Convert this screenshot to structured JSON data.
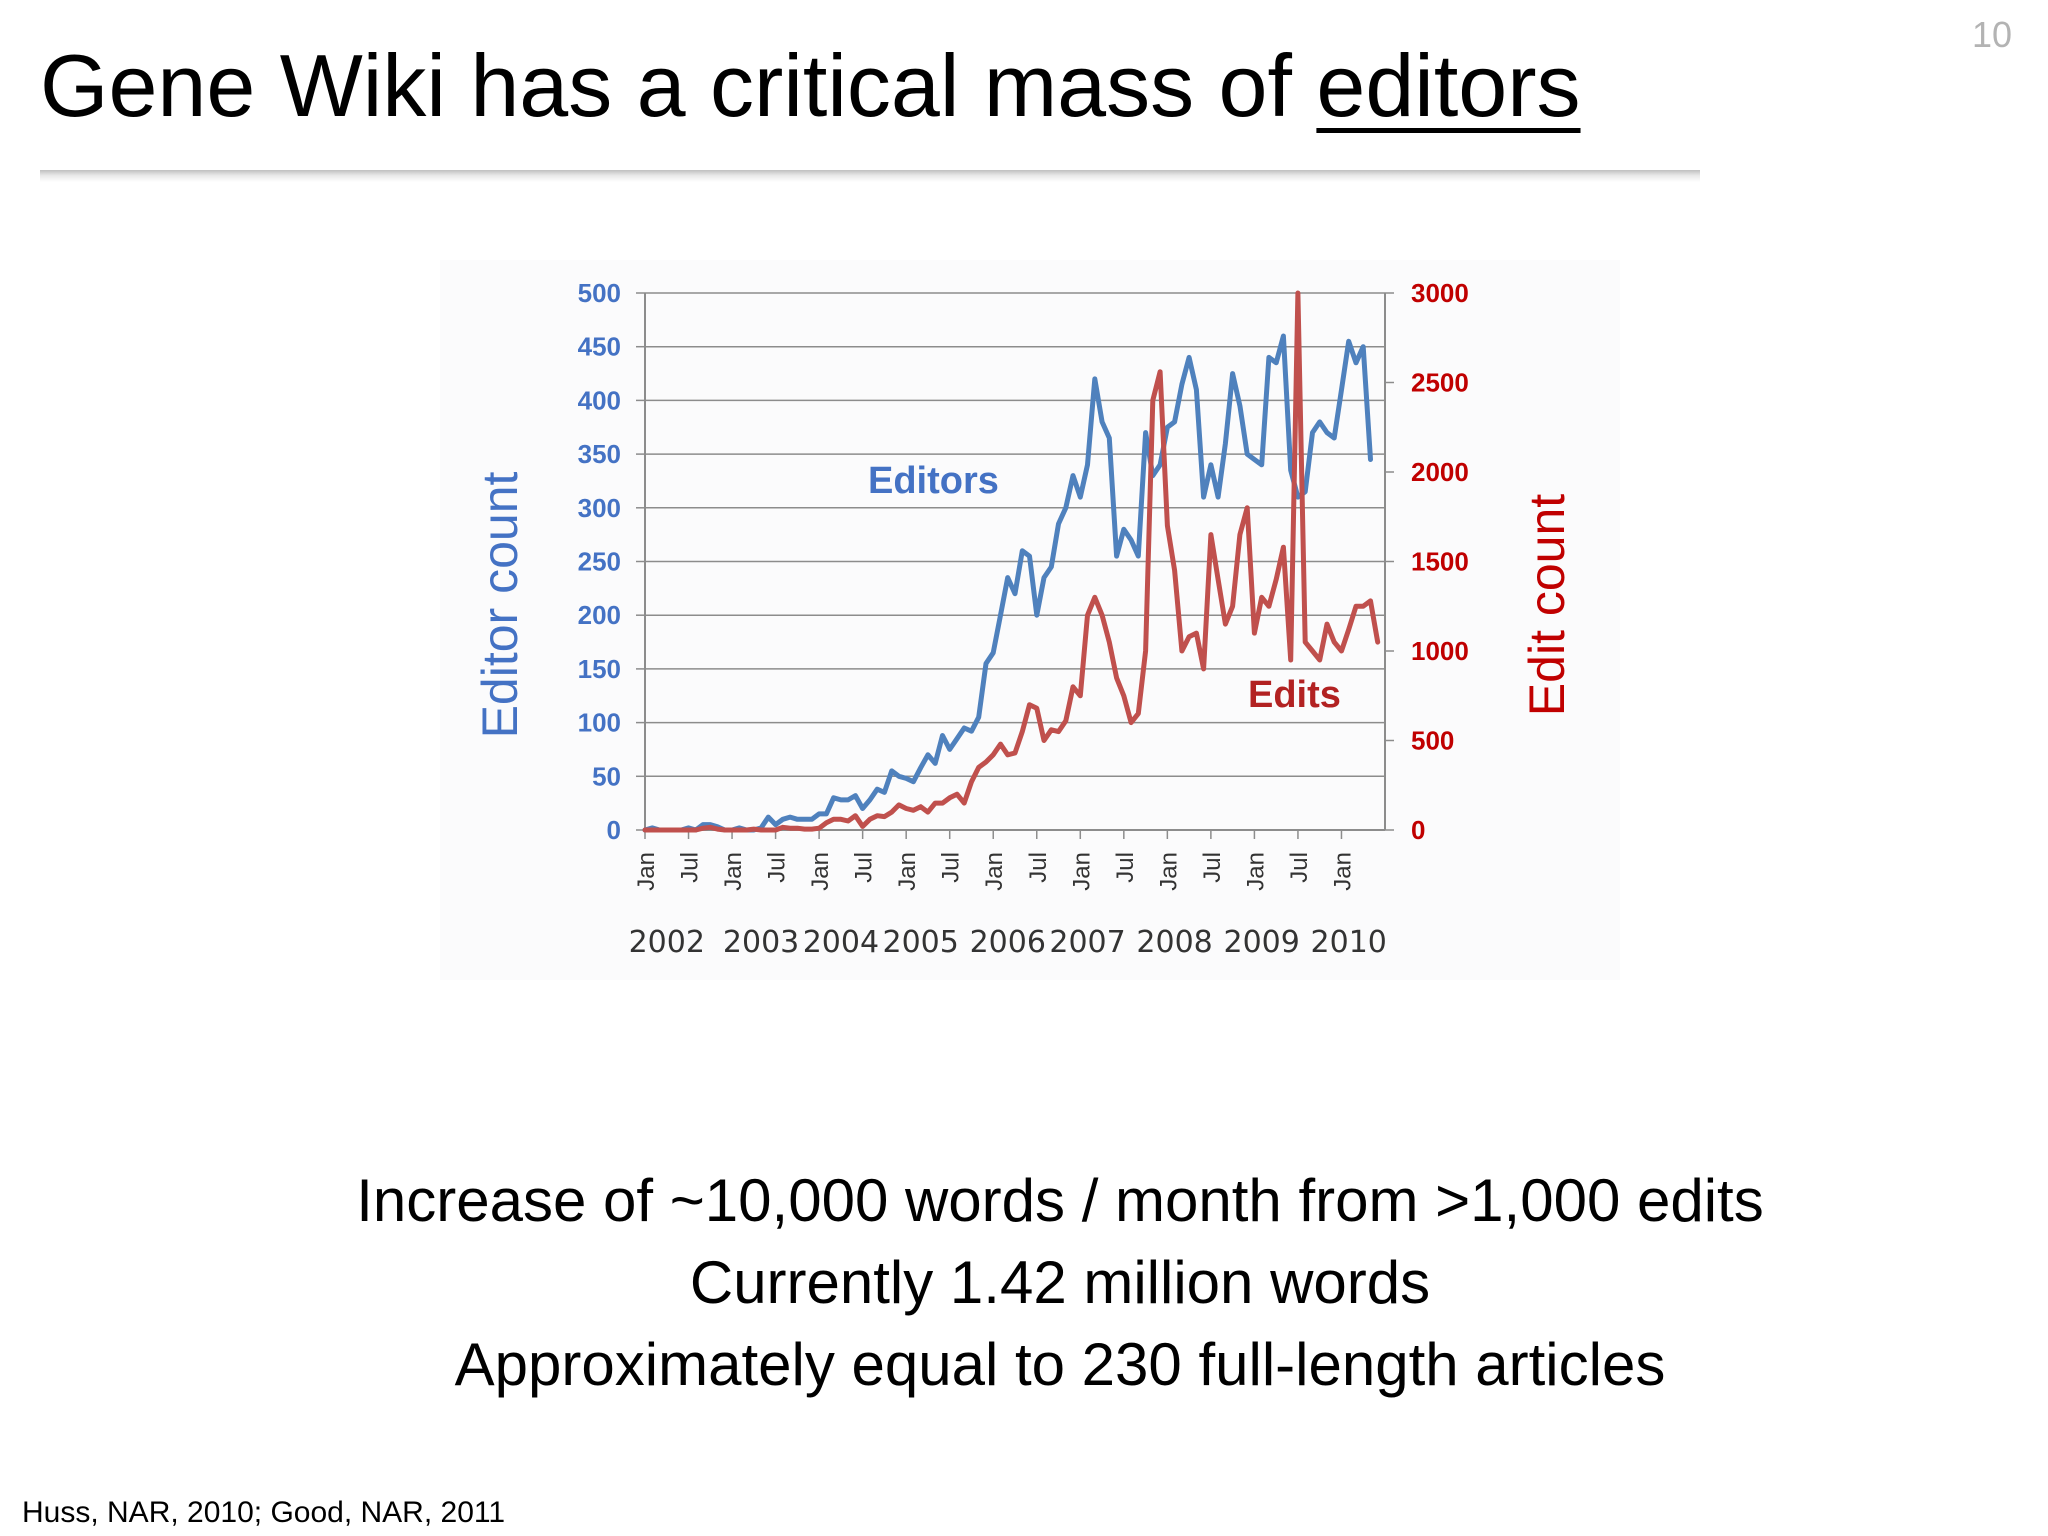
{
  "slide": {
    "page_number": "10",
    "title_prefix": "Gene Wiki has a critical mass of ",
    "title_emphasis": "editors",
    "summary_lines": [
      "Increase of ~10,000 words / month from >1,000 edits",
      "Currently 1.42 million words",
      "Approximately equal to 230 full-length articles"
    ],
    "citation": "Huss, NAR, 2010; Good, NAR, 2011"
  },
  "chart_data": {
    "type": "line",
    "title": "",
    "y_left_label": "Editor count",
    "y_right_label": "Edit count",
    "y_left_ticks": [
      "0",
      "50",
      "100",
      "150",
      "200",
      "250",
      "300",
      "350",
      "400",
      "450",
      "500"
    ],
    "y_right_ticks": [
      "0",
      "500",
      "1000",
      "1500",
      "2000",
      "2500",
      "3000"
    ],
    "y_left_lim": [
      0,
      500
    ],
    "y_right_lim": [
      0,
      3000
    ],
    "x_ticks": [
      {
        "label": "Jan",
        "month": 0
      },
      {
        "label": "Jul",
        "month": 6
      },
      {
        "label": "Jan",
        "month": 12
      },
      {
        "label": "Jul",
        "month": 18
      },
      {
        "label": "Jan",
        "month": 24
      },
      {
        "label": "Jul",
        "month": 30
      },
      {
        "label": "Jan",
        "month": 36
      },
      {
        "label": "Jul",
        "month": 42
      },
      {
        "label": "Jan",
        "month": 48
      },
      {
        "label": "Jul",
        "month": 54
      },
      {
        "label": "Jan",
        "month": 60
      },
      {
        "label": "Jul",
        "month": 66
      },
      {
        "label": "Jan",
        "month": 72
      },
      {
        "label": "Jul",
        "month": 78
      },
      {
        "label": "Jan",
        "month": 84
      },
      {
        "label": "Jul",
        "month": 90
      },
      {
        "label": "Jan",
        "month": 96
      }
    ],
    "year_labels": [
      {
        "label": "2002",
        "month": 3
      },
      {
        "label": "2003",
        "month": 16
      },
      {
        "label": "2004",
        "month": 27
      },
      {
        "label": "2005",
        "month": 38
      },
      {
        "label": "2006",
        "month": 50
      },
      {
        "label": "2007",
        "month": 61
      },
      {
        "label": "2008",
        "month": 73
      },
      {
        "label": "2009",
        "month": 85
      },
      {
        "label": "2010",
        "month": 97
      }
    ],
    "x_range": [
      0,
      102
    ],
    "grid": true,
    "series": [
      {
        "name": "Editors",
        "axis": "left",
        "color": "#4f81bd",
        "values": [
          0,
          2,
          0,
          0,
          0,
          0,
          2,
          0,
          5,
          5,
          3,
          0,
          0,
          2,
          0,
          0,
          2,
          12,
          5,
          10,
          12,
          10,
          10,
          10,
          15,
          15,
          30,
          28,
          28,
          32,
          20,
          28,
          38,
          35,
          55,
          50,
          48,
          45,
          58,
          70,
          62,
          88,
          75,
          85,
          95,
          92,
          105,
          155,
          165,
          200,
          235,
          220,
          260,
          255,
          200,
          235,
          245,
          285,
          300,
          330,
          310,
          340,
          420,
          380,
          365,
          255,
          280,
          270,
          255,
          370,
          330,
          340,
          375,
          380,
          415,
          440,
          410,
          310,
          340,
          310,
          360,
          425,
          395,
          350,
          345,
          340,
          440,
          435,
          460,
          335,
          310,
          315,
          370,
          380,
          370,
          365,
          410,
          455,
          435,
          450,
          345
        ],
        "value_unit": "monthly, from Jan 2002"
      },
      {
        "name": "Edits",
        "axis": "right",
        "color": "#c0504d",
        "values": [
          0,
          0,
          0,
          0,
          0,
          0,
          0,
          0,
          10,
          15,
          5,
          0,
          0,
          0,
          0,
          5,
          0,
          0,
          0,
          15,
          10,
          10,
          5,
          5,
          10,
          40,
          60,
          60,
          50,
          80,
          20,
          60,
          80,
          75,
          100,
          140,
          120,
          110,
          130,
          100,
          150,
          150,
          180,
          200,
          150,
          270,
          350,
          380,
          420,
          480,
          420,
          430,
          550,
          700,
          680,
          500,
          560,
          550,
          610,
          800,
          750,
          1200,
          1300,
          1200,
          1050,
          850,
          750,
          600,
          650,
          1000,
          2400,
          2560,
          1700,
          1450,
          1000,
          1080,
          1100,
          900,
          1650,
          1400,
          1150,
          1250,
          1650,
          1800,
          1100,
          1300,
          1250,
          1400,
          1580,
          950,
          3000,
          1050,
          1000,
          950,
          1150,
          1050,
          1000,
          1120,
          1250,
          1250,
          1280,
          1050
        ]
      }
    ]
  }
}
